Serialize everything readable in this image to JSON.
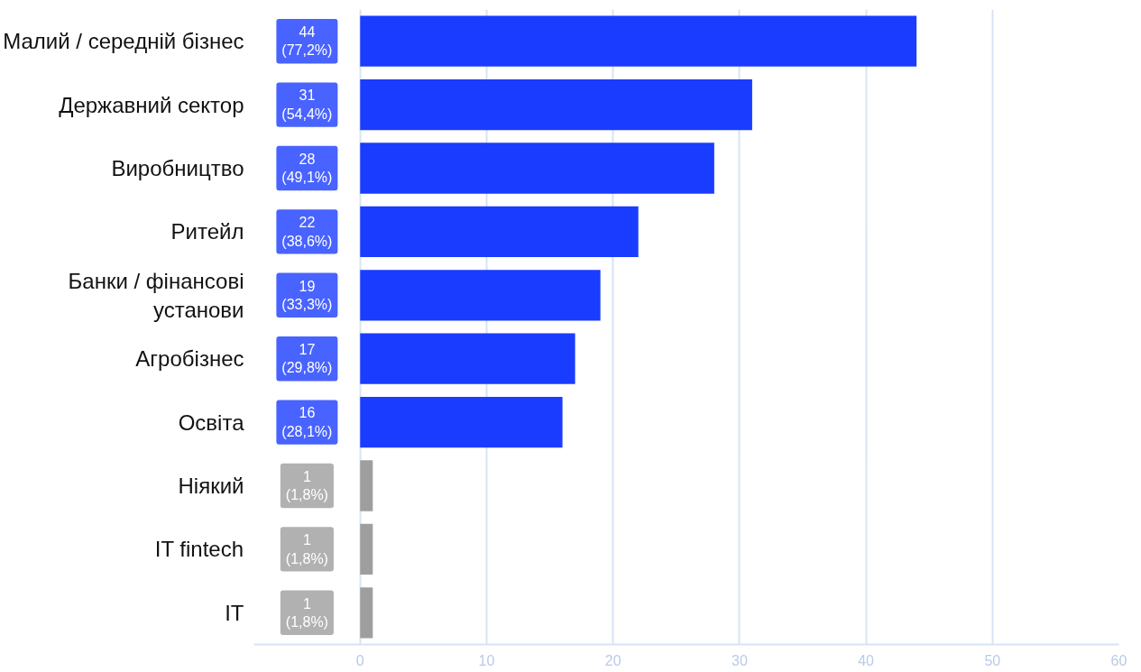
{
  "chart_data": {
    "type": "bar",
    "orientation": "horizontal",
    "categories": [
      "Малий / середній бізнес",
      "Державний сектор",
      "Виробництво",
      "Ритейл",
      "Банки / фінансові установи",
      "Агробізнес",
      "Освіта",
      "Ніякий",
      "IT fintech",
      "IT"
    ],
    "values": [
      44,
      31,
      28,
      22,
      19,
      17,
      16,
      1,
      1,
      1
    ],
    "colors": [
      "#1a3cff",
      "#1a3cff",
      "#1a3cff",
      "#1a3cff",
      "#1a3cff",
      "#1a3cff",
      "#1a3cff",
      "#9e9e9e",
      "#9e9e9e",
      "#9e9e9e"
    ],
    "value_labels": [
      "44\n(77,2%)",
      "31\n(54,4%)",
      "28\n(49,1%)",
      "22\n(38,6%)",
      "19\n(33,3%)",
      "17\n(29,8%)",
      "16\n(28,1%)",
      "1\n(1,8%)",
      "1\n(1,8%)",
      "1\n(1,8%)"
    ],
    "xlim": [
      -8.4,
      60
    ],
    "xticks": [
      0,
      10,
      20,
      30,
      40,
      50,
      60
    ],
    "grid": "x"
  }
}
